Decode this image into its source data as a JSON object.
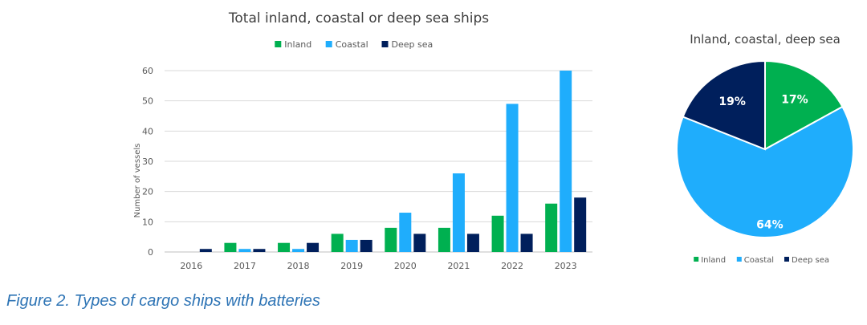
{
  "chart_data": [
    {
      "type": "bar",
      "title": "Total inland, coastal or deep sea ships",
      "xlabel": "",
      "ylabel": "Number of vessels",
      "ylim": [
        0,
        60
      ],
      "yticks": [
        0,
        10,
        20,
        30,
        40,
        50,
        60
      ],
      "grid": true,
      "legend_position": "top",
      "categories": [
        "2016",
        "2017",
        "2018",
        "2019",
        "2020",
        "2021",
        "2022",
        "2023"
      ],
      "series": [
        {
          "name": "Inland",
          "color": "#00b050",
          "values": [
            0,
            3,
            3,
            6,
            8,
            8,
            12,
            16
          ]
        },
        {
          "name": "Coastal",
          "color": "#1fadfc",
          "values": [
            0,
            1,
            1,
            4,
            13,
            26,
            49,
            60
          ]
        },
        {
          "name": "Deep sea",
          "color": "#001f5c",
          "values": [
            1,
            1,
            3,
            4,
            6,
            6,
            6,
            18
          ]
        }
      ]
    },
    {
      "type": "pie",
      "title": "Inland, coastal, deep sea",
      "legend_position": "bottom",
      "slices": [
        {
          "name": "Inland",
          "value": 17,
          "label": "17%",
          "color": "#00b050"
        },
        {
          "name": "Coastal",
          "value": 64,
          "label": "64%",
          "color": "#1fadfc"
        },
        {
          "name": "Deep sea",
          "value": 19,
          "label": "19%",
          "color": "#001f5c"
        }
      ]
    }
  ],
  "caption": "Figure 2. Types of cargo ships with batteries"
}
